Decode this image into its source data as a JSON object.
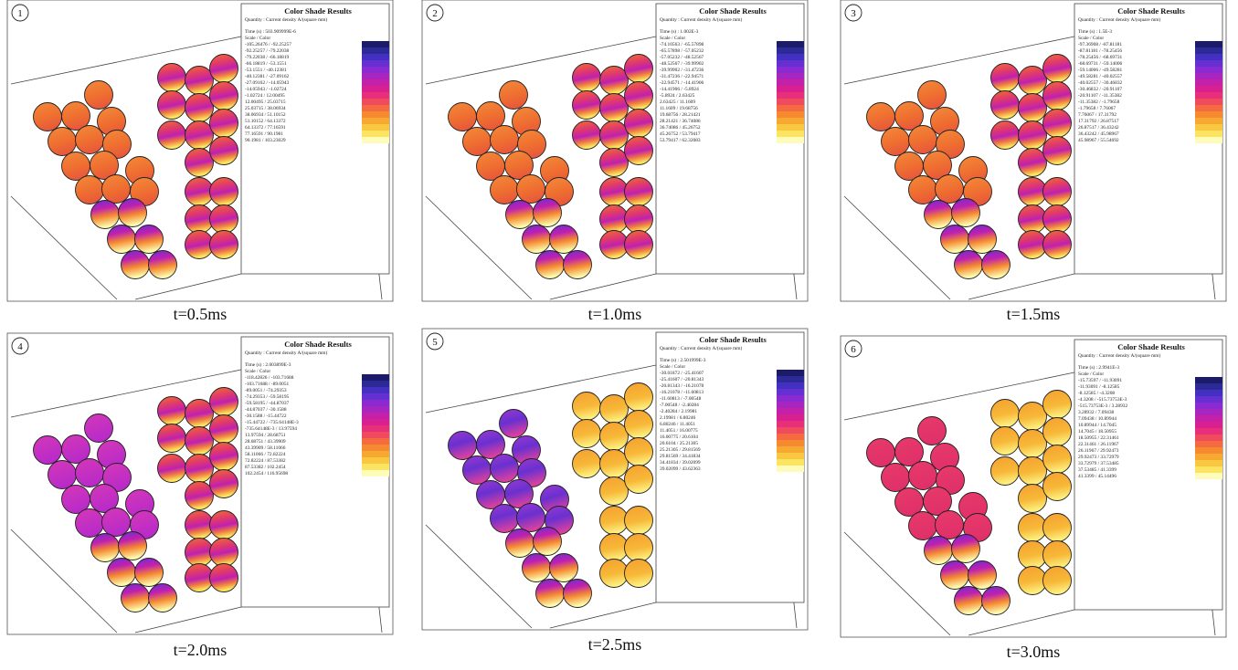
{
  "panels": [
    {
      "number": "1",
      "caption": "t=0.5ms",
      "legend": {
        "title": "Color Shade Results",
        "quantity": "Quantity : Current density A/(square mm)",
        "time": "Time (s) : 503.909999E-6",
        "scale_header": "Scale / Color",
        "rows": [
          "-105.26476  /  -92.25257",
          "-92.25257  /  -79.22038",
          "-79.22038  /  -66.18819",
          "-66.18819  /  -53.1551",
          "-53.1551  /  -40.12381",
          "-40.12381  /  -27.09162",
          "-27.09162  /  -14.05943",
          "-14.05943  /  -1.02724",
          "-1.02724  /  12.00495",
          "12.00495  /  25.03715",
          "25.03715  /  38.06934",
          "38.06934  /  51.10152",
          "51.10152  /  64.13372",
          "64.13372  /  77.16591",
          "77.16591  /  90.1981",
          "90.1981  /  103.23029"
        ]
      }
    },
    {
      "number": "2",
      "caption": "t=1.0ms",
      "legend": {
        "title": "Color Shade Results",
        "quantity": "Quantity : Current density A/(square mm)",
        "time": "Time (s) : 1.002E-3",
        "scale_header": "Scale / Color",
        "rows": [
          "-74.10563  /  -65.57898",
          "-65.57898  /  -57.05232",
          "-57.05232  /  -48.52567",
          "-48.52567  /  -39.99902",
          "-39.99902  /  -31.47236",
          "-31.47236  /  -22.94571",
          "-22.94571  /  -14.41906",
          "-14.41906  /  -5.8924",
          "-5.8924  /  2.63425",
          "2.63425  /  11.1609",
          "11.1609  /  19.68756",
          "19.68756  /  28.21421",
          "28.21421  /  36.74086",
          "36.74086  /  45.26752",
          "45.26752  /  53.79417",
          "53.79417  /  62.32083"
        ]
      }
    },
    {
      "number": "3",
      "caption": "t=1.5ms",
      "legend": {
        "title": "Color Shade Results",
        "quantity": "Quantity : Current density A/(square mm)",
        "time": "Time (s) : 1.5E-3",
        "scale_header": "Scale / Color",
        "rows": [
          "-97.36908  /  -87.81181",
          "-87.81181  /  -78.25456",
          "-78.25456  /  -68.69731",
          "-68.69731  /  -59.14006",
          "-59.14006  /  -49.58281",
          "-49.58281  /  -40.02557",
          "-40.02557  /  -30.46832",
          "-30.46832  /  -20.91107",
          "-20.91107  /  -11.35382",
          "-11.35382  /  -1.79658",
          "-1.79658  /  7.76067",
          "7.76067  /  17.31792",
          "17.31792  /  26.87517",
          "26.87517  /  36.43242",
          "36.43242  /  45.98967",
          "45.98967  /  55.54692"
        ]
      }
    },
    {
      "number": "4",
      "caption": "t=2.0ms",
      "legend": {
        "title": "Color Shade Results",
        "quantity": "Quantity : Current density A/(square mm)",
        "time": "Time (s) : 2.003899E-3",
        "scale_header": "Scale / Color",
        "rows": [
          "-118.42826  /  -103.71688",
          "-103.71688  /  -89.0051",
          "-89.0051  /  -74.29353",
          "-74.29353  /  -59.58195",
          "-59.58195  /  -44.87037",
          "-44.87037  /  -30.1588",
          "-30.1588  /  -15.44722",
          "-15.44722  /  -735.64148E-3",
          "-735.64148E-3  /  13.97594",
          "13.97594  /  28.68751",
          "28.68751  /  43.39909",
          "43.39909  /  58.11066",
          "58.11066  /  72.82224",
          "72.82224  /  87.53382",
          "87.53382  /  102.2454",
          "102.2454  /  116.95698"
        ]
      }
    },
    {
      "number": "5",
      "caption": "t=2.5ms",
      "legend": {
        "title": "Color Shade Results",
        "quantity": "Quantity : Current density A/(square mm)",
        "time": "Time (s) : 2.501999E-3",
        "scale_header": "Scale / Color",
        "rows": [
          "-30.01872  /  -25.41607",
          "-25.41607  /  -20.81343",
          "-20.81343  /  -16.21078",
          "-16.21078  /  -11.60813",
          "-11.60813  /  -7.00548",
          "-7.00548  /  -2.40284",
          "-2.40284  /  2.19981",
          "2.19981  /  6.80246",
          "6.80246  /  11.4051",
          "11.4051  /  16.00775",
          "16.00775  /  20.6104",
          "20.6104  /  25.21305",
          "25.21305  /  29.81569",
          "29.81569  /  34.41834",
          "34.41834  /  39.02099",
          "39.02099  /  43.62363"
        ]
      }
    },
    {
      "number": "6",
      "caption": "t=3.0ms",
      "legend": {
        "title": "Color Shade Results",
        "quantity": "Quantity : Current density A/(square mm)",
        "time": "Time (s) : 2.9941E-3",
        "scale_header": "Scale / Color",
        "rows": [
          "-15.73597  /  -11.93091",
          "-11.93091  /  -8.12585",
          "-8.12585  /  -4.3208",
          "-4.3208  /  -515.73753E-3",
          "-515.73753E-3  /  3.28932",
          "3.28932  /  7.09438",
          "7.09438  /  10.89944",
          "10.89944  /  14.7045",
          "14.7045  /  18.50955",
          "18.50955  /  22.31461",
          "22.31461  /  26.11967",
          "26.11967  /  29.92473",
          "29.92473  /  33.72979",
          "33.72979  /  37.53485",
          "37.53485  /  41.3399",
          "41.3399  /  45.14496"
        ]
      }
    }
  ]
}
